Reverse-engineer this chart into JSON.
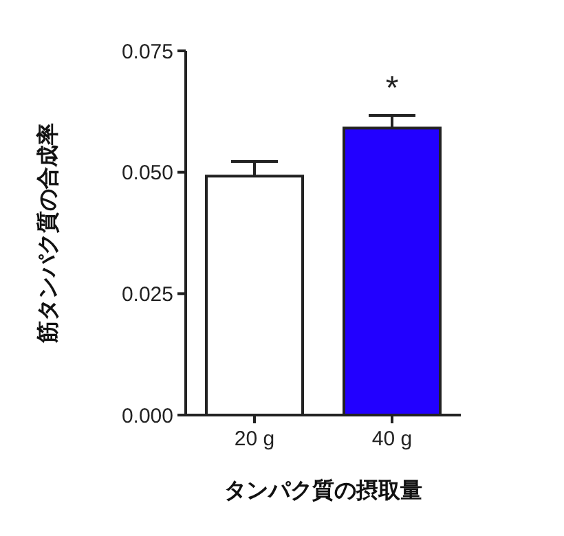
{
  "chart_data": {
    "type": "bar",
    "xlabel": "タンパク質の摂取量",
    "ylabel": "筋タンパク質の合成率",
    "categories": [
      "20 g",
      "40 g"
    ],
    "values": [
      0.0492,
      0.0591
    ],
    "errors": [
      0.003,
      0.0026
    ],
    "colors": [
      "#ffffff",
      "#2200ff"
    ],
    "ylim": [
      0,
      0.075
    ],
    "yticks": [
      {
        "value": 0,
        "label": "0.000"
      },
      {
        "value": 0.025,
        "label": "0.025"
      },
      {
        "value": 0.05,
        "label": "0.050"
      },
      {
        "value": 0.075,
        "label": "0.075"
      }
    ],
    "annotations": [
      "*"
    ],
    "grid": false
  }
}
